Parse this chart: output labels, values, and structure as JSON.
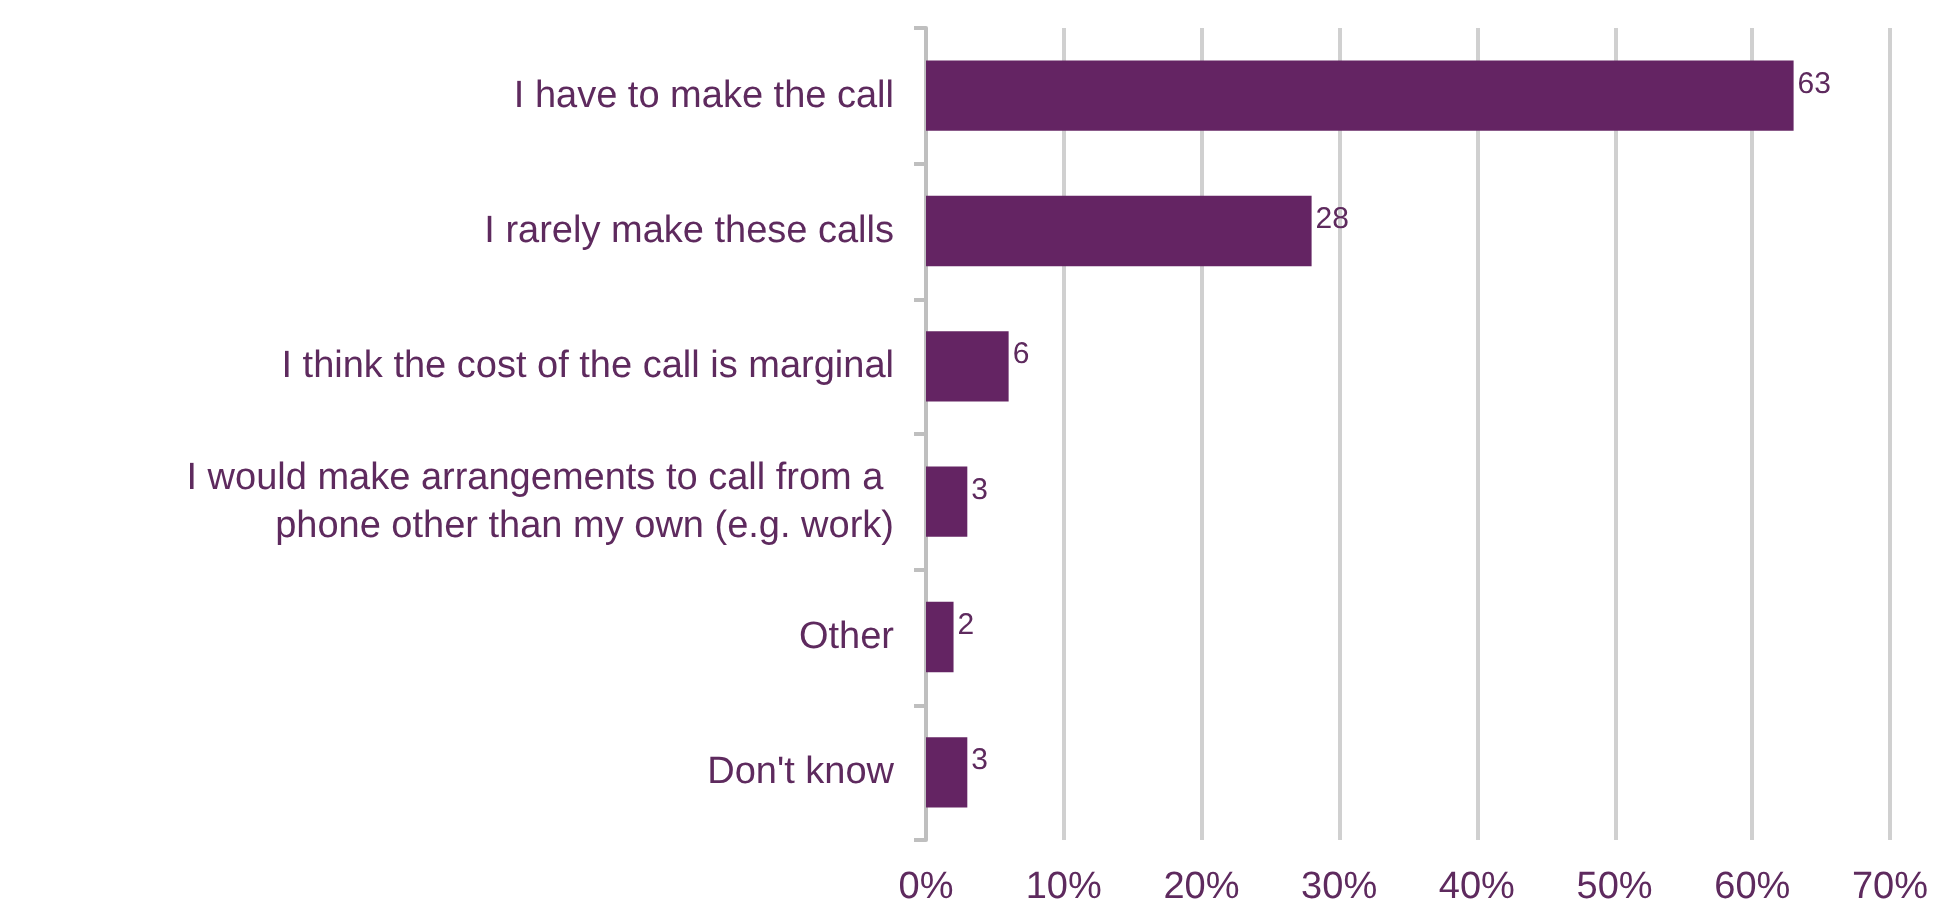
{
  "chart_data": {
    "type": "bar",
    "orientation": "horizontal",
    "categories": [
      "I have to make the call",
      "I rarely make these calls",
      "I think the cost of the call is marginal",
      "I would make arrangements to call from a phone other than my own (e.g. work)",
      "Other",
      "Don't know"
    ],
    "values": [
      63,
      28,
      6,
      3,
      2,
      3
    ],
    "color": "#642463",
    "xlim": [
      0,
      70
    ],
    "xticks": [
      {
        "value": 0,
        "label": "0%"
      },
      {
        "value": 10,
        "label": "10%"
      },
      {
        "value": 20,
        "label": "20%"
      },
      {
        "value": 30,
        "label": "30%"
      },
      {
        "value": 40,
        "label": "40%"
      },
      {
        "value": 50,
        "label": "50%"
      },
      {
        "value": 60,
        "label": "60%"
      },
      {
        "value": 70,
        "label": "70%"
      }
    ],
    "grid": "x",
    "data_labels": true
  }
}
